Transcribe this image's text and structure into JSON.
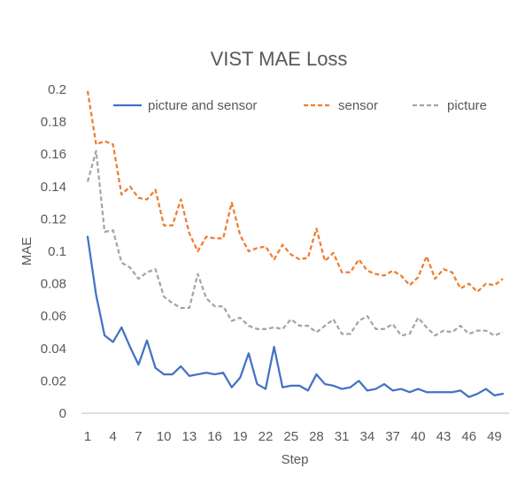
{
  "chart_data": {
    "type": "line",
    "title": "VIST MAE Loss",
    "xlabel": "Step",
    "ylabel": "MAE",
    "x": [
      1,
      2,
      3,
      4,
      5,
      6,
      7,
      8,
      9,
      10,
      11,
      12,
      13,
      14,
      15,
      16,
      17,
      18,
      19,
      20,
      21,
      22,
      23,
      24,
      25,
      26,
      27,
      28,
      29,
      30,
      31,
      32,
      33,
      34,
      35,
      36,
      37,
      38,
      39,
      40,
      41,
      42,
      43,
      44,
      45,
      46,
      47,
      48,
      49,
      50
    ],
    "xticks": [
      1,
      4,
      7,
      10,
      13,
      16,
      19,
      22,
      25,
      28,
      31,
      34,
      37,
      40,
      43,
      46,
      49
    ],
    "ylim": [
      0,
      0.2
    ],
    "yticks": [
      0,
      0.02,
      0.04,
      0.06,
      0.08,
      0.1,
      0.12,
      0.14,
      0.16,
      0.18,
      0.2
    ],
    "ytick_labels": [
      "0",
      "0.02",
      "0.04",
      "0.06",
      "0.08",
      "0.1",
      "0.12",
      "0.14",
      "0.16",
      "0.18",
      "0.2"
    ],
    "grid": false,
    "legend_position": "top",
    "series": [
      {
        "name": "picture and sensor",
        "color": "#4472C4",
        "dash": "solid",
        "values": [
          0.109,
          0.073,
          0.048,
          0.044,
          0.053,
          0.041,
          0.03,
          0.045,
          0.028,
          0.024,
          0.024,
          0.029,
          0.023,
          0.024,
          0.025,
          0.024,
          0.025,
          0.016,
          0.022,
          0.037,
          0.018,
          0.015,
          0.041,
          0.016,
          0.017,
          0.017,
          0.014,
          0.024,
          0.018,
          0.017,
          0.015,
          0.016,
          0.02,
          0.014,
          0.015,
          0.018,
          0.014,
          0.015,
          0.013,
          0.015,
          0.013,
          0.013,
          0.013,
          0.013,
          0.014,
          0.01,
          0.012,
          0.015,
          0.011,
          0.012
        ]
      },
      {
        "name": "sensor",
        "color": "#ED7D31",
        "dash": "dashed",
        "values": [
          0.199,
          0.166,
          0.168,
          0.166,
          0.135,
          0.14,
          0.133,
          0.132,
          0.138,
          0.116,
          0.116,
          0.132,
          0.111,
          0.1,
          0.109,
          0.108,
          0.108,
          0.13,
          0.11,
          0.1,
          0.102,
          0.103,
          0.095,
          0.104,
          0.098,
          0.095,
          0.096,
          0.114,
          0.094,
          0.099,
          0.087,
          0.087,
          0.095,
          0.088,
          0.086,
          0.085,
          0.088,
          0.085,
          0.079,
          0.084,
          0.097,
          0.083,
          0.089,
          0.087,
          0.077,
          0.08,
          0.075,
          0.08,
          0.079,
          0.083
        ]
      },
      {
        "name": "picture",
        "color": "#A5A5A5",
        "dash": "dashed",
        "values": [
          0.143,
          0.162,
          0.112,
          0.113,
          0.093,
          0.09,
          0.083,
          0.087,
          0.089,
          0.072,
          0.068,
          0.065,
          0.065,
          0.086,
          0.071,
          0.066,
          0.066,
          0.057,
          0.059,
          0.054,
          0.052,
          0.052,
          0.053,
          0.052,
          0.058,
          0.054,
          0.054,
          0.05,
          0.054,
          0.058,
          0.049,
          0.049,
          0.057,
          0.06,
          0.052,
          0.052,
          0.055,
          0.048,
          0.049,
          0.059,
          0.053,
          0.048,
          0.051,
          0.05,
          0.054,
          0.049,
          0.051,
          0.051,
          0.048,
          0.05
        ]
      }
    ]
  }
}
